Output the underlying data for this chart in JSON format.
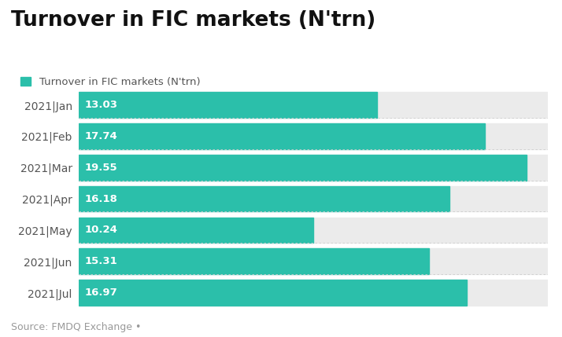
{
  "title": "Turnover in FIC markets (N'trn)",
  "legend_label": "Turnover in FIC markets (N'trn)",
  "source": "Source: FMDQ Exchange •",
  "categories": [
    "2021|Jan",
    "2021|Feb",
    "2021|Mar",
    "2021|Apr",
    "2021|May",
    "2021|Jun",
    "2021|Jul"
  ],
  "values": [
    13.03,
    17.74,
    19.55,
    16.18,
    10.24,
    15.31,
    16.97
  ],
  "bar_color": "#2bbfaa",
  "background_color": "#ffffff",
  "bar_bg_color": "#ebebeb",
  "text_color": "#ffffff",
  "label_fontsize": 9.5,
  "title_fontsize": 19,
  "legend_fontsize": 9.5,
  "source_fontsize": 9,
  "ytick_fontsize": 10,
  "xlim": [
    0,
    20.5
  ],
  "bar_height": 0.82
}
